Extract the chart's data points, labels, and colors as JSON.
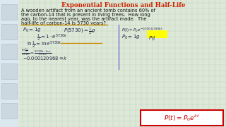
{
  "title": "Exponential Functions and Half-Life",
  "title_color": "#cc2200",
  "bg_color": "#dde8d8",
  "grid_color": "#b8ccb0",
  "problem_line1": "A wooden artifact from an ancient tomb contains 60% of",
  "problem_line2": "the carbon-14 that is present in living trees.  How long",
  "problem_line3": "ago, to the nearest year, was the artifact made.  The",
  "problem_line4": "half-life of carbon-14 is 5730 years?",
  "underline_color": "#cc8800",
  "ink_color": "#222244",
  "formula_box_color": "#cc0000",
  "formula_box_fill": "#ffffff",
  "highlight_color": "#ffff00",
  "sidebar_bg": "#dce8f0",
  "sidebar_box_fill": "#ccd8e0",
  "sidebar_box_edge": "#aabbcc",
  "divider_color": "#5555cc",
  "text_color": "#111111"
}
